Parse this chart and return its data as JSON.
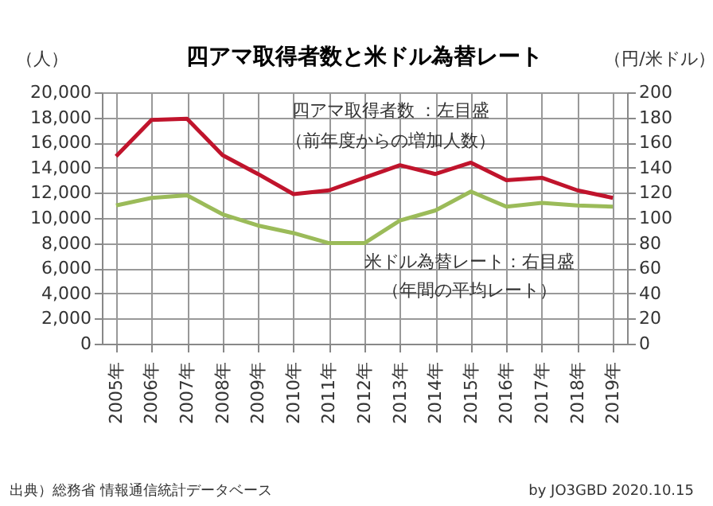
{
  "chart_data": {
    "type": "line",
    "title": "四アマ取得者数と米ドル為替レート",
    "ylabel": "（人）",
    "y2label": "（円/米ドル）",
    "categories": [
      "2005年",
      "2006年",
      "2007年",
      "2008年",
      "2009年",
      "2010年",
      "2011年",
      "2012年",
      "2013年",
      "2014年",
      "2015年",
      "2016年",
      "2017年",
      "2018年",
      "2019年"
    ],
    "series": [
      {
        "name": "四アマ取得者数 ：左目盛",
        "color": "#c0142c",
        "values": [
          14900,
          17800,
          17900,
          15000,
          13500,
          11900,
          12200,
          13200,
          14200,
          13500,
          14400,
          13000,
          13200,
          12200,
          11600
        ]
      },
      {
        "name": "米ドル為替レート：右目盛",
        "color": "#9bbb59",
        "axis": "y2",
        "values": [
          110,
          116,
          118,
          103,
          94,
          88,
          80,
          80,
          98,
          106,
          121,
          109,
          112,
          110,
          109
        ]
      }
    ],
    "ylim": [
      0,
      20000
    ],
    "yticks": [
      {
        "value": 0,
        "label": "0"
      },
      {
        "value": 2000,
        "label": "2,000"
      },
      {
        "value": 4000,
        "label": "4,000"
      },
      {
        "value": 6000,
        "label": "6,000"
      },
      {
        "value": 8000,
        "label": "8,000"
      },
      {
        "value": 10000,
        "label": "10,000"
      },
      {
        "value": 12000,
        "label": "12,000"
      },
      {
        "value": 14000,
        "label": "14,000"
      },
      {
        "value": 16000,
        "label": "16,000"
      },
      {
        "value": 18000,
        "label": "18,000"
      },
      {
        "value": 20000,
        "label": "20,000"
      }
    ],
    "y2lim": [
      0,
      200
    ],
    "y2ticks": [
      0,
      20,
      40,
      60,
      80,
      100,
      120,
      140,
      160,
      180,
      200
    ],
    "grid": true,
    "legend": false,
    "marker": "none",
    "line_style": "solid",
    "annotations": [
      "（前年度からの増加人数）",
      "（年間の平均レート）",
      "出典）総務省 情報通信統計データベース",
      "by JO3GBD 2020.10.15"
    ]
  }
}
